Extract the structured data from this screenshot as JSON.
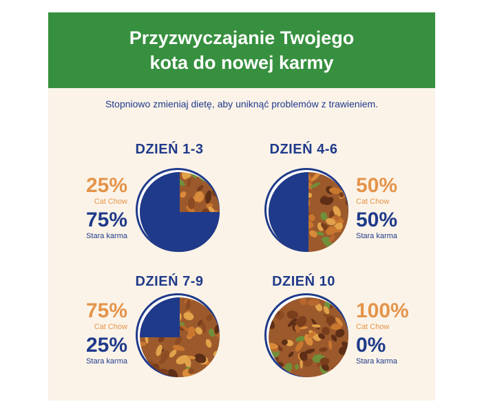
{
  "header": {
    "title_line1": "Przyzwyczajanie Twojego",
    "title_line2": "kota do nowej karmy",
    "subtitle": "Stopniowo zmieniaj dietę, aby uniknąć problemów z trawieniem."
  },
  "colors": {
    "banner": "#37903f",
    "background": "#fbf3e8",
    "navy": "#1f3a8a",
    "orange": "#e4944a"
  },
  "stages": [
    {
      "day": "DZIEŃ 1-3",
      "new_pct": "25%",
      "new_label": "Cat Chow",
      "old_pct": "75%",
      "old_label": "Stara karma",
      "new_fraction": 0.25
    },
    {
      "day": "DZIEŃ 4-6",
      "new_pct": "50%",
      "new_label": "Cat Chow",
      "old_pct": "50%",
      "old_label": "Stara karma",
      "new_fraction": 0.5
    },
    {
      "day": "DZIEŃ 7-9",
      "new_pct": "75%",
      "new_label": "Cat Chow",
      "old_pct": "25%",
      "old_label": "Stara karma",
      "new_fraction": 0.75
    },
    {
      "day": "DZIEŃ 10",
      "new_pct": "100%",
      "new_label": "Cat Chow",
      "old_pct": "0%",
      "old_label": "Stara karma",
      "new_fraction": 1.0
    }
  ]
}
